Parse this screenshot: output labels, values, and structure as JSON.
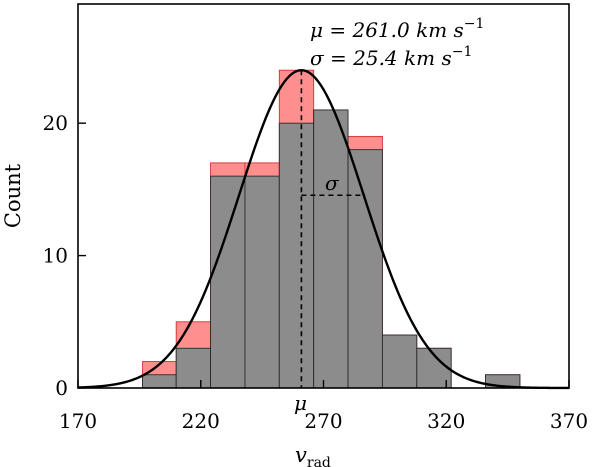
{
  "chart_data": {
    "type": "bar",
    "bin_edges": [
      196.3,
      210.0,
      224.0,
      238.0,
      252.0,
      266.0,
      280.0,
      294.0,
      308.0,
      322.0,
      336.0,
      350.0
    ],
    "series": [
      {
        "name": "",
        "color": "#ff8f8f",
        "values": [
          2,
          5,
          17,
          17,
          24,
          21,
          19,
          4,
          3,
          0,
          1
        ]
      },
      {
        "name": "",
        "color": "#8c8c8c",
        "values": [
          1,
          3,
          16,
          16,
          20,
          21,
          18,
          4,
          3,
          0,
          1
        ]
      }
    ],
    "fit": {
      "mu": 261.0,
      "sigma": 25.4,
      "peak": 24,
      "color": "#000000"
    },
    "annotations": {
      "mu_line1": "μ = 261.0 km s",
      "sigma_line1": "σ = 25.4 km s",
      "unit_exponent": "−1",
      "sigma_marker": "σ",
      "mu_marker": "μ"
    },
    "xlabel": "v",
    "xlabel_sub": "rad",
    "ylabel": "Count",
    "xlim": [
      170,
      370
    ],
    "ylim": [
      0,
      29
    ],
    "xticks": [
      170,
      220,
      270,
      320,
      370
    ],
    "yticks": [
      0,
      10,
      20
    ],
    "grid": false
  }
}
